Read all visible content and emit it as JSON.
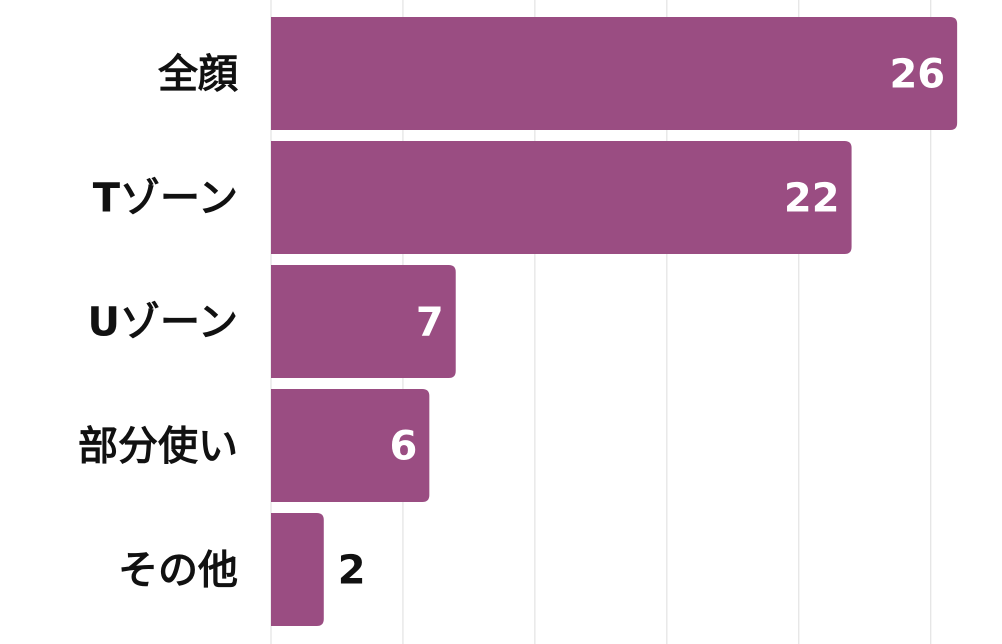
{
  "chart_data": {
    "type": "bar",
    "orientation": "horizontal",
    "categories": [
      "全顔",
      "Tゾーン",
      "Uゾーン",
      "部分使い",
      "その他"
    ],
    "values": [
      26,
      22,
      7,
      6,
      2
    ],
    "title": "",
    "xlabel": "",
    "ylabel": "",
    "xlim": [
      0,
      27.7
    ],
    "grid": true,
    "grid_step": 5,
    "data_labels": true,
    "colors": {
      "bar": "#9a4d82",
      "grid": "#dddddd",
      "label_inside": "#ffffff",
      "label_outside": "#111111"
    }
  }
}
